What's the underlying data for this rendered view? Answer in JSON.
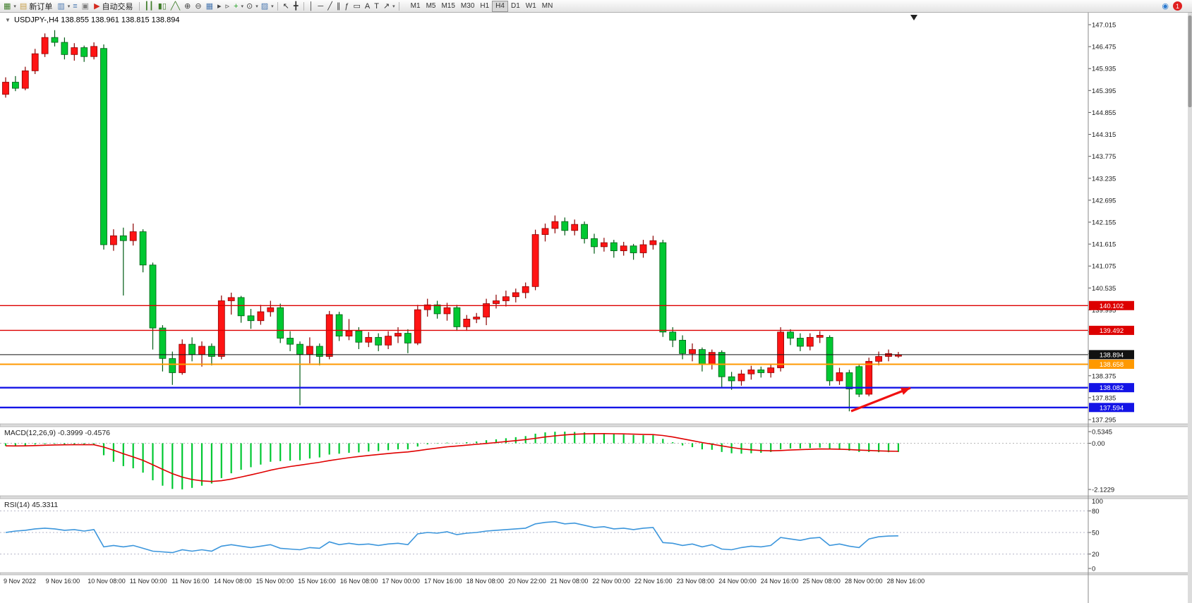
{
  "toolbar": {
    "items": [
      {
        "type": "icon",
        "name": "new-chart-icon",
        "glyph": "▦",
        "color": "#3f7d2a"
      },
      {
        "type": "caret"
      },
      {
        "type": "button",
        "name": "new-order-button",
        "icon_name": "new-order-icon",
        "icon_glyph": "▤",
        "icon_color": "#c8a04a",
        "label": "新订单"
      },
      {
        "type": "icon",
        "name": "chart-profiles-icon",
        "glyph": "▥",
        "color": "#4a78b0"
      },
      {
        "type": "caret"
      },
      {
        "type": "icon",
        "name": "market-watch-icon",
        "glyph": "≡",
        "color": "#4a78b0"
      },
      {
        "type": "icon",
        "name": "data-window-icon",
        "glyph": "▣",
        "color": "#808080"
      },
      {
        "type": "button",
        "name": "autotrade-button",
        "icon_name": "autotrade-icon",
        "icon_glyph": "▶",
        "icon_color": "#d42a1e",
        "label": "自动交易"
      },
      {
        "type": "sep"
      },
      {
        "type": "icon",
        "name": "bars-chart-icon",
        "glyph": "┃┃",
        "color": "#3f7d2a"
      },
      {
        "type": "icon",
        "name": "candles-chart-icon",
        "glyph": "▮▯",
        "color": "#3f7d2a"
      },
      {
        "type": "icon",
        "name": "line-chart-icon",
        "glyph": "╱╲",
        "color": "#3f7d2a"
      },
      {
        "type": "icon",
        "name": "zoom-in-icon",
        "glyph": "⊕",
        "color": "#444444"
      },
      {
        "type": "icon",
        "name": "zoom-out-icon",
        "glyph": "⊖",
        "color": "#444444"
      },
      {
        "type": "icon",
        "name": "tile-windows-icon",
        "glyph": "▦",
        "color": "#4a78b0"
      },
      {
        "type": "icon",
        "name": "auto-scroll-icon",
        "glyph": "▸",
        "color": "#444444"
      },
      {
        "type": "icon",
        "name": "chart-shift-icon",
        "glyph": "▹",
        "color": "#444444"
      },
      {
        "type": "icon",
        "name": "indicators-icon",
        "glyph": "+",
        "color": "#1fa11f"
      },
      {
        "type": "caret"
      },
      {
        "type": "icon",
        "name": "periods-icon",
        "glyph": "⊙",
        "color": "#444444"
      },
      {
        "type": "caret"
      },
      {
        "type": "icon",
        "name": "templates-icon",
        "glyph": "▨",
        "color": "#4a78b0"
      },
      {
        "type": "caret"
      },
      {
        "type": "sep"
      },
      {
        "type": "icon",
        "name": "cursor-icon",
        "glyph": "↖",
        "color": "#333333"
      },
      {
        "type": "icon",
        "name": "crosshair-icon",
        "glyph": "╋",
        "color": "#333333"
      },
      {
        "type": "sep"
      },
      {
        "type": "icon",
        "name": "vertical-line-icon",
        "glyph": "│",
        "color": "#333333"
      },
      {
        "type": "icon",
        "name": "horizontal-line-icon",
        "glyph": "─",
        "color": "#333333"
      },
      {
        "type": "icon",
        "name": "trendline-icon",
        "glyph": "╱",
        "color": "#333333"
      },
      {
        "type": "icon",
        "name": "channel-icon",
        "glyph": "∥",
        "color": "#333333"
      },
      {
        "type": "icon",
        "name": "fibonacci-icon",
        "glyph": "ƒ",
        "color": "#333333"
      },
      {
        "type": "icon",
        "name": "shapes-icon",
        "glyph": "▭",
        "color": "#333333"
      },
      {
        "type": "icon",
        "name": "text-icon",
        "glyph": "A",
        "color": "#333333"
      },
      {
        "type": "icon",
        "name": "text-label-icon",
        "glyph": "T",
        "color": "#333333"
      },
      {
        "type": "icon",
        "name": "arrows-icon",
        "glyph": "↗",
        "color": "#333333"
      },
      {
        "type": "caret"
      },
      {
        "type": "sep"
      }
    ],
    "timeframes": [
      "M1",
      "M5",
      "M15",
      "M30",
      "H1",
      "H4",
      "D1",
      "W1",
      "MN"
    ],
    "active_timeframe": "H4",
    "right": {
      "community_glyph": "◉",
      "community_color": "#2a7ad0",
      "badge": "1"
    }
  },
  "chart_data": {
    "type": "candlestick",
    "symbol": "USDJPY-",
    "timeframe": "H4",
    "ohlc_readout": {
      "open": "138.855",
      "high": "138.961",
      "low": "138.815",
      "close": "138.894"
    },
    "candle_up_color": "#ff1414",
    "candle_down_color": "#00c832",
    "price_axis_labels": [
      "147.015",
      "146.475",
      "145.935",
      "145.395",
      "144.855",
      "144.315",
      "143.775",
      "143.235",
      "142.695",
      "142.155",
      "141.615",
      "141.075",
      "140.535",
      "139.995",
      "139.455",
      "138.915",
      "138.375",
      "137.835",
      "137.295"
    ],
    "time_axis_labels": [
      "9 Nov 2022",
      "9 Nov 16:00",
      "10 Nov 08:00",
      "11 Nov 00:00",
      "11 Nov 16:00",
      "14 Nov 08:00",
      "15 Nov 00:00",
      "15 Nov 16:00",
      "16 Nov 08:00",
      "17 Nov 00:00",
      "17 Nov 16:00",
      "18 Nov 08:00",
      "20 Nov 22:00",
      "21 Nov 08:00",
      "22 Nov 00:00",
      "22 Nov 16:00",
      "23 Nov 08:00",
      "24 Nov 00:00",
      "24 Nov 16:00",
      "25 Nov 08:00",
      "28 Nov 00:00",
      "28 Nov 16:00"
    ],
    "candles_ohlc": [
      [
        145.3,
        145.72,
        145.22,
        145.6
      ],
      [
        145.6,
        145.75,
        145.38,
        145.45
      ],
      [
        145.45,
        145.98,
        145.4,
        145.88
      ],
      [
        145.88,
        146.42,
        145.8,
        146.3
      ],
      [
        146.3,
        146.8,
        146.22,
        146.7
      ],
      [
        146.7,
        146.88,
        146.48,
        146.58
      ],
      [
        146.58,
        146.7,
        146.16,
        146.28
      ],
      [
        146.28,
        146.56,
        146.13,
        146.45
      ],
      [
        146.45,
        146.5,
        146.1,
        146.23
      ],
      [
        146.23,
        146.58,
        146.16,
        146.48
      ],
      [
        146.43,
        146.53,
        141.48,
        141.6
      ],
      [
        141.6,
        141.98,
        141.45,
        141.82
      ],
      [
        141.82,
        142.02,
        140.35,
        141.7
      ],
      [
        141.7,
        142.12,
        141.58,
        141.92
      ],
      [
        141.92,
        141.98,
        140.92,
        141.1
      ],
      [
        141.1,
        141.16,
        139.02,
        139.55
      ],
      [
        139.55,
        139.62,
        138.48,
        138.8
      ],
      [
        138.8,
        138.97,
        138.15,
        138.45
      ],
      [
        138.45,
        139.27,
        138.4,
        139.15
      ],
      [
        139.15,
        139.32,
        138.73,
        138.9
      ],
      [
        138.9,
        139.22,
        138.6,
        139.1
      ],
      [
        139.1,
        139.17,
        138.63,
        138.85
      ],
      [
        138.85,
        140.35,
        138.78,
        140.22
      ],
      [
        140.22,
        140.42,
        139.88,
        140.3
      ],
      [
        140.3,
        140.34,
        139.68,
        139.85
      ],
      [
        139.85,
        140.02,
        139.53,
        139.73
      ],
      [
        139.73,
        140.12,
        139.63,
        139.95
      ],
      [
        139.95,
        140.22,
        139.83,
        140.05
      ],
      [
        140.05,
        140.15,
        139.18,
        139.3
      ],
      [
        139.3,
        139.47,
        138.98,
        139.15
      ],
      [
        139.15,
        139.22,
        137.65,
        138.9
      ],
      [
        138.9,
        139.32,
        138.68,
        139.1
      ],
      [
        139.1,
        139.17,
        138.63,
        138.85
      ],
      [
        138.85,
        139.97,
        138.78,
        139.88
      ],
      [
        139.88,
        139.95,
        139.23,
        139.35
      ],
      [
        139.35,
        139.77,
        139.25,
        139.48
      ],
      [
        139.48,
        139.57,
        139.03,
        139.2
      ],
      [
        139.2,
        139.45,
        139.08,
        139.32
      ],
      [
        139.32,
        139.42,
        138.98,
        139.13
      ],
      [
        139.13,
        139.47,
        139.03,
        139.35
      ],
      [
        139.35,
        139.57,
        139.18,
        139.42
      ],
      [
        139.42,
        139.52,
        138.93,
        139.18
      ],
      [
        139.18,
        140.12,
        139.13,
        140.0
      ],
      [
        140.0,
        140.27,
        139.83,
        140.12
      ],
      [
        140.12,
        140.22,
        139.78,
        139.9
      ],
      [
        139.9,
        140.17,
        139.73,
        140.05
      ],
      [
        140.05,
        140.12,
        139.48,
        139.58
      ],
      [
        139.58,
        139.87,
        139.48,
        139.77
      ],
      [
        139.77,
        139.92,
        139.67,
        139.82
      ],
      [
        139.82,
        140.27,
        139.62,
        140.15
      ],
      [
        140.15,
        140.37,
        140.03,
        140.22
      ],
      [
        140.22,
        140.47,
        140.08,
        140.32
      ],
      [
        140.32,
        140.52,
        140.18,
        140.42
      ],
      [
        140.42,
        140.67,
        140.28,
        140.57
      ],
      [
        140.57,
        141.97,
        140.48,
        141.85
      ],
      [
        141.85,
        142.12,
        141.68,
        142.0
      ],
      [
        142.0,
        142.32,
        141.88,
        142.17
      ],
      [
        142.17,
        142.27,
        141.83,
        141.95
      ],
      [
        141.95,
        142.22,
        141.83,
        142.1
      ],
      [
        142.1,
        142.17,
        141.63,
        141.75
      ],
      [
        141.75,
        141.87,
        141.38,
        141.55
      ],
      [
        141.55,
        141.77,
        141.43,
        141.65
      ],
      [
        141.65,
        141.72,
        141.28,
        141.45
      ],
      [
        141.45,
        141.67,
        141.33,
        141.57
      ],
      [
        141.57,
        141.62,
        141.23,
        141.4
      ],
      [
        141.4,
        141.72,
        141.28,
        141.6
      ],
      [
        141.6,
        141.82,
        141.48,
        141.7
      ],
      [
        141.65,
        141.72,
        139.33,
        139.45
      ],
      [
        139.45,
        139.57,
        139.08,
        139.25
      ],
      [
        139.25,
        139.37,
        138.78,
        138.92
      ],
      [
        138.92,
        139.17,
        138.73,
        139.02
      ],
      [
        139.02,
        139.07,
        138.48,
        138.65
      ],
      [
        138.65,
        139.02,
        138.53,
        138.95
      ],
      [
        138.95,
        139.0,
        138.08,
        138.35
      ],
      [
        138.35,
        138.47,
        138.03,
        138.25
      ],
      [
        138.25,
        138.52,
        138.13,
        138.42
      ],
      [
        138.42,
        138.62,
        138.28,
        138.52
      ],
      [
        138.52,
        138.6,
        138.33,
        138.45
      ],
      [
        138.45,
        138.67,
        138.33,
        138.57
      ],
      [
        138.57,
        139.57,
        138.48,
        139.45
      ],
      [
        139.45,
        139.52,
        139.13,
        139.3
      ],
      [
        139.3,
        139.42,
        138.98,
        139.1
      ],
      [
        139.1,
        139.42,
        139.0,
        139.32
      ],
      [
        139.32,
        139.47,
        139.18,
        139.37
      ],
      [
        139.32,
        139.37,
        138.13,
        138.25
      ],
      [
        138.25,
        138.57,
        138.15,
        138.45
      ],
      [
        138.45,
        138.52,
        137.5,
        138.05
      ],
      [
        138.6,
        138.67,
        137.85,
        137.92
      ],
      [
        137.92,
        138.82,
        137.87,
        138.73
      ],
      [
        138.73,
        138.97,
        138.63,
        138.85
      ],
      [
        138.85,
        139.02,
        138.73,
        138.92
      ],
      [
        138.855,
        138.961,
        138.815,
        138.894
      ]
    ],
    "horizontal_lines": [
      {
        "price": 140.102,
        "label": "140.102",
        "color": "#dd0000",
        "width": 1.4
      },
      {
        "price": 139.492,
        "label": "139.492",
        "color": "#dd0000",
        "width": 1.4
      },
      {
        "price": 138.894,
        "label": "138.894",
        "color": "#111111",
        "width": 1,
        "role": "current-price"
      },
      {
        "price": 138.658,
        "label": "138.658",
        "color": "#ff9900",
        "width": 2
      },
      {
        "price": 138.082,
        "label": "138.082",
        "color": "#1414e6",
        "width": 2.4
      },
      {
        "price": 137.594,
        "label": "137.594",
        "color": "#1414e6",
        "width": 2.4
      }
    ],
    "annotation_arrow": {
      "from": [
        1206,
        583
      ],
      "to": [
        1290,
        550
      ],
      "color": "#f01010"
    },
    "indicators": {
      "macd": {
        "label": "MACD(12,26,9)",
        "value_text": "-0.3999 -0.4576",
        "scale_labels": [
          "0.5345",
          "0.00",
          "-2.1229"
        ],
        "scale_max": 0.5345,
        "scale_min": -2.1229,
        "histogram_color": "#00c832",
        "signal_color": "#e00000",
        "histogram": [
          -0.12,
          -0.14,
          -0.1,
          -0.06,
          -0.04,
          -0.03,
          -0.05,
          -0.06,
          -0.07,
          -0.06,
          -0.55,
          -0.85,
          -1.05,
          -1.15,
          -1.35,
          -1.7,
          -1.95,
          -2.1,
          -2.12,
          -2.05,
          -1.95,
          -1.85,
          -1.6,
          -1.38,
          -1.22,
          -1.1,
          -0.98,
          -0.85,
          -0.82,
          -0.8,
          -0.78,
          -0.7,
          -0.65,
          -0.52,
          -0.48,
          -0.44,
          -0.42,
          -0.38,
          -0.36,
          -0.32,
          -0.28,
          -0.28,
          -0.15,
          -0.05,
          -0.02,
          0.03,
          0.02,
          0.05,
          0.08,
          0.14,
          0.18,
          0.23,
          0.28,
          0.33,
          0.44,
          0.5,
          0.53,
          0.534,
          0.52,
          0.5,
          0.47,
          0.45,
          0.42,
          0.4,
          0.38,
          0.37,
          0.37,
          0.2,
          0.05,
          -0.1,
          -0.18,
          -0.28,
          -0.3,
          -0.4,
          -0.46,
          -0.48,
          -0.46,
          -0.44,
          -0.4,
          -0.28,
          -0.24,
          -0.24,
          -0.22,
          -0.2,
          -0.28,
          -0.3,
          -0.34,
          -0.4,
          -0.4,
          -0.41,
          -0.41,
          -0.4
        ]
      },
      "rsi": {
        "label": "RSI(14)",
        "value_text": "45.3311",
        "scale_labels": [
          "100",
          "80",
          "50",
          "20",
          "0"
        ],
        "levels": [
          80,
          50,
          20
        ],
        "line_color": "#3c96dc",
        "values": [
          50,
          52,
          53,
          55,
          56,
          55,
          53,
          54,
          52,
          54,
          30,
          32,
          30,
          32,
          28,
          24,
          23,
          22,
          26,
          24,
          26,
          24,
          31,
          33,
          31,
          29,
          31,
          33,
          28,
          27,
          26,
          29,
          28,
          37,
          33,
          35,
          33,
          34,
          32,
          34,
          35,
          33,
          48,
          50,
          49,
          51,
          47,
          49,
          50,
          52,
          53,
          54,
          55,
          56,
          62,
          64,
          65,
          62,
          63,
          60,
          57,
          58,
          55,
          56,
          54,
          56,
          57,
          36,
          35,
          32,
          34,
          30,
          33,
          27,
          26,
          29,
          31,
          30,
          32,
          43,
          41,
          39,
          42,
          43,
          32,
          34,
          31,
          29,
          41,
          44,
          45,
          45.33
        ]
      }
    }
  }
}
